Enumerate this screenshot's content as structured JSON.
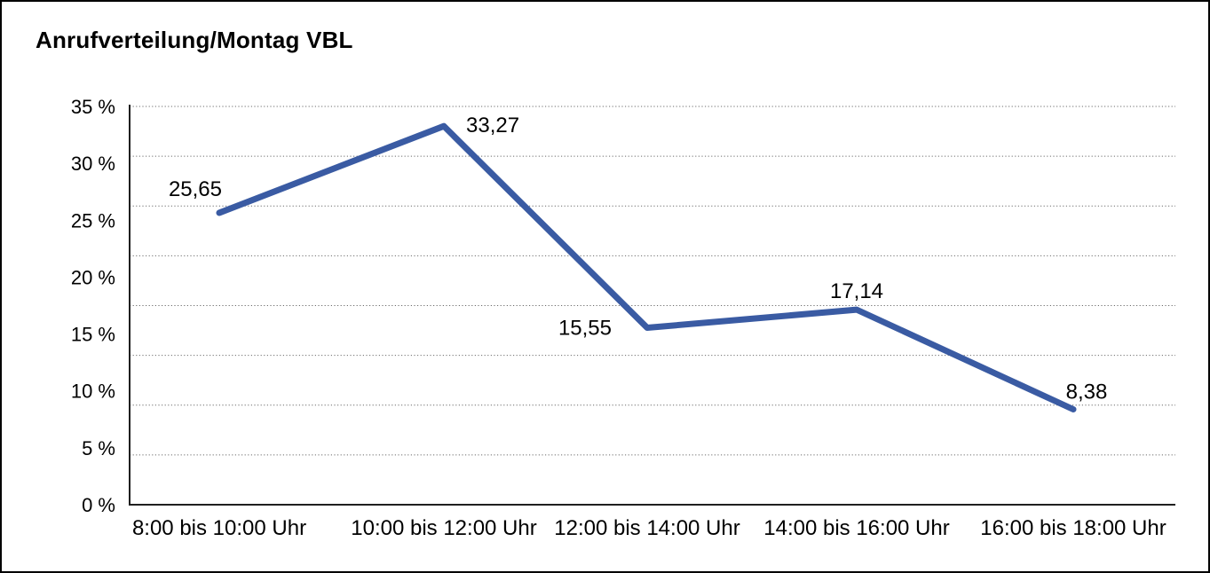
{
  "title": "Anrufverteilung/Montag VBL",
  "chart_data": {
    "type": "line",
    "title": "Anrufverteilung/Montag VBL",
    "categories": [
      "8:00 bis 10:00 Uhr",
      "10:00 bis 12:00 Uhr",
      "12:00 bis 14:00 Uhr",
      "14:00 bis 16:00 Uhr",
      "16:00 bis 18:00 Uhr"
    ],
    "values": [
      25.65,
      33.27,
      15.55,
      17.14,
      8.38
    ],
    "value_labels": [
      "25,65",
      "33,27",
      "15,55",
      "17,14",
      "8,38"
    ],
    "xlabel": "",
    "ylabel": "",
    "ylim": [
      0,
      35
    ],
    "y_tick_values": [
      35,
      30,
      25,
      20,
      15,
      10,
      5,
      0
    ],
    "y_tick_labels": [
      "35 %",
      "30 %",
      "25 %",
      "20 %",
      "15 %",
      "10 %",
      "5 %",
      "0 %"
    ],
    "gridlines": "horizontal-dotted",
    "gridline_count": 9,
    "legend_position": "none",
    "line_color": "#3A5BA3",
    "axis_color": "#1f1f1f",
    "gridline_color": "#6b6b6b",
    "text_color": "#000000",
    "background_color": "#ffffff"
  }
}
